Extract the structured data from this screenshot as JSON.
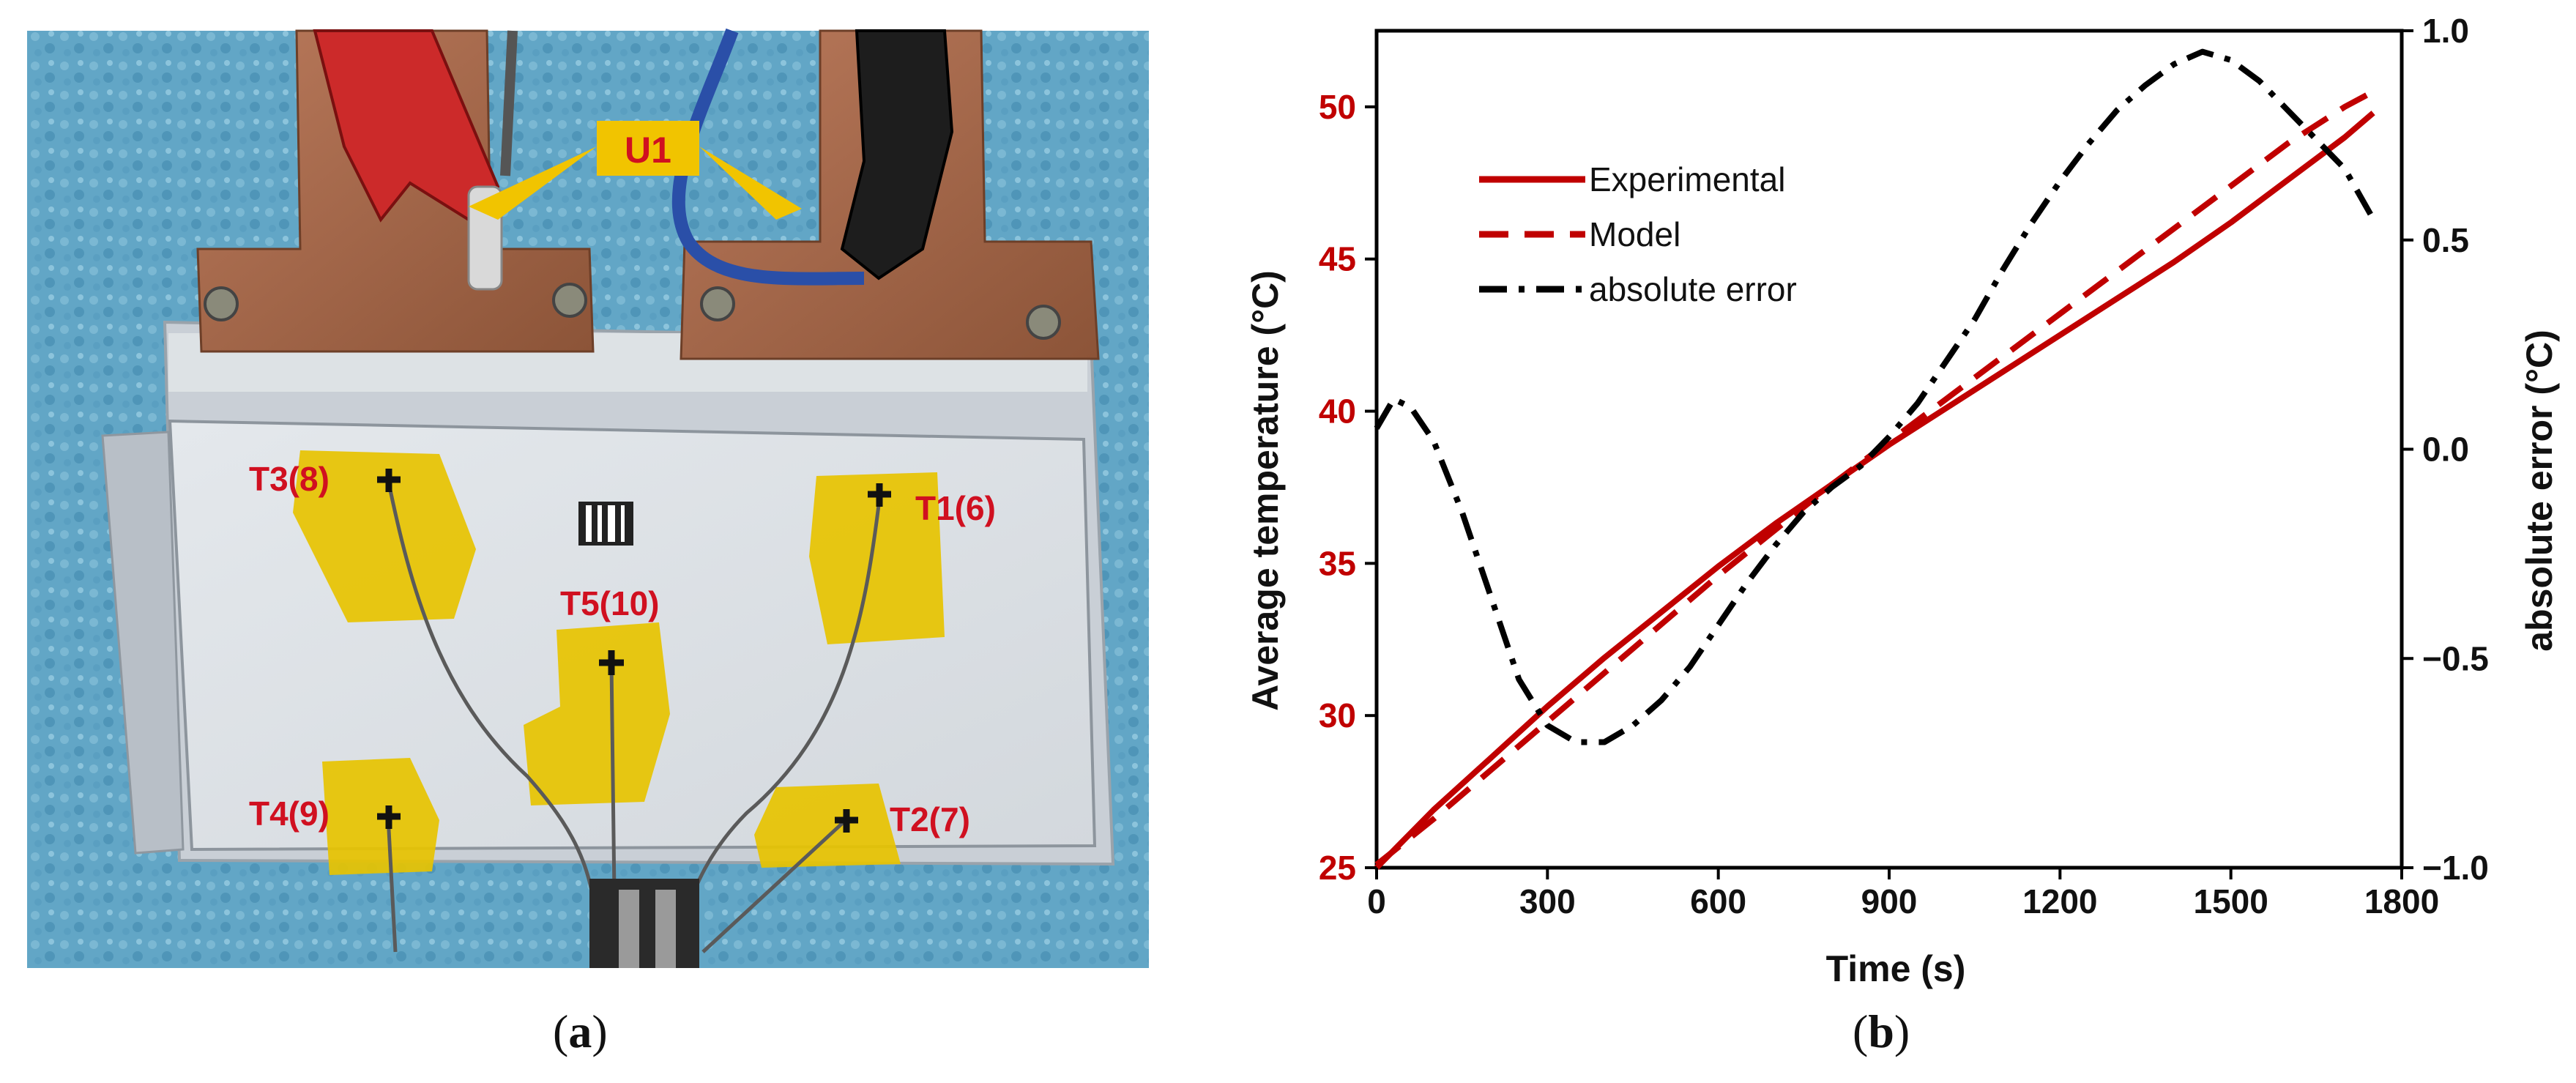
{
  "photo": {
    "labels": {
      "u1": "U1",
      "t1": "T1(6)",
      "t2": "T2(7)",
      "t3": "T3(8)",
      "t4": "T4(9)",
      "t5": "T5(10)"
    },
    "caption_open": "(",
    "caption_letter": "a",
    "caption_close": ")"
  },
  "chart_caption": {
    "open": "(",
    "letter": "b",
    "close": ")"
  },
  "colors": {
    "experimental": "#c00000",
    "model": "#c00000",
    "absolute_error": "#000000",
    "left_axis_labels": "#c00000"
  },
  "chart_data": {
    "type": "line",
    "xlabel": "Time (s)",
    "ylabel_left": "Average temperature (°C)",
    "ylabel_right": "absolute error (°C)",
    "xlim": [
      0,
      1800
    ],
    "ylim_left": [
      25,
      52.5
    ],
    "ylim_right": [
      -1.0,
      1.0
    ],
    "x_ticks": [
      "0",
      "300",
      "600",
      "900",
      "1200",
      "1500",
      "1800"
    ],
    "y_left_ticks": [
      "25",
      "30",
      "35",
      "40",
      "45",
      "50"
    ],
    "y_right_ticks": [
      "−1.0",
      "−0.5",
      "0.0",
      "0.5",
      "1.0"
    ],
    "legend_position": "top-left",
    "grid": false,
    "series": [
      {
        "name": "Experimental",
        "axis": "left",
        "style": "solid",
        "x": [
          0,
          100,
          200,
          300,
          400,
          500,
          600,
          700,
          800,
          900,
          1000,
          1100,
          1200,
          1300,
          1400,
          1500,
          1600,
          1700,
          1750
        ],
        "y": [
          25.0,
          26.9,
          28.6,
          30.3,
          31.9,
          33.4,
          34.9,
          36.3,
          37.6,
          38.9,
          40.1,
          41.3,
          42.5,
          43.7,
          44.9,
          46.2,
          47.6,
          49.0,
          49.8
        ]
      },
      {
        "name": "Model",
        "axis": "left",
        "style": "dashed",
        "x": [
          0,
          100,
          200,
          300,
          400,
          500,
          600,
          700,
          800,
          900,
          1000,
          1100,
          1200,
          1300,
          1400,
          1500,
          1600,
          1700,
          1750
        ],
        "y": [
          25.1,
          26.6,
          28.2,
          29.8,
          31.4,
          33.0,
          34.6,
          36.1,
          37.6,
          39.0,
          40.4,
          41.8,
          43.2,
          44.6,
          46.0,
          47.4,
          48.8,
          50.0,
          50.5
        ]
      },
      {
        "name": "absolute error",
        "axis": "right",
        "style": "dashdot",
        "x": [
          0,
          30,
          60,
          100,
          150,
          200,
          250,
          300,
          350,
          400,
          450,
          500,
          550,
          600,
          650,
          700,
          750,
          800,
          850,
          900,
          950,
          1000,
          1050,
          1100,
          1150,
          1200,
          1250,
          1300,
          1350,
          1400,
          1450,
          1500,
          1550,
          1600,
          1650,
          1700,
          1750
        ],
        "y": [
          0.05,
          0.12,
          0.1,
          0.02,
          -0.15,
          -0.35,
          -0.55,
          -0.66,
          -0.7,
          -0.7,
          -0.66,
          -0.6,
          -0.52,
          -0.42,
          -0.32,
          -0.23,
          -0.15,
          -0.09,
          -0.04,
          0.03,
          0.11,
          0.21,
          0.31,
          0.43,
          0.54,
          0.64,
          0.73,
          0.81,
          0.87,
          0.92,
          0.95,
          0.93,
          0.88,
          0.81,
          0.74,
          0.67,
          0.55
        ]
      }
    ]
  }
}
